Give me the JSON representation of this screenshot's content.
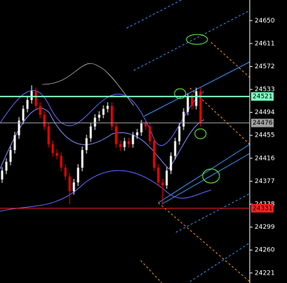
{
  "chart_data": {
    "type": "candlestick",
    "open": [
      24380,
      24395,
      24410,
      24430,
      24455,
      24480,
      24500,
      24515,
      24530,
      24505,
      24490,
      24470,
      24440,
      24425,
      24420,
      24400,
      24385,
      24360,
      24375,
      24400,
      24430,
      24450,
      24470,
      24485,
      24490,
      24500,
      24505,
      24470,
      24440,
      24435,
      24445,
      24440,
      24455,
      24460,
      24475,
      24470,
      24445,
      24400,
      24375,
      24370,
      24395,
      24420,
      24445,
      24470,
      24495,
      24520,
      24505,
      24530
    ],
    "high": [
      24401,
      24416,
      24436,
      24461,
      24486,
      24506,
      24521,
      24540,
      24536,
      24511,
      24496,
      24476,
      24446,
      24431,
      24426,
      24406,
      24391,
      24381,
      24406,
      24436,
      24456,
      24476,
      24491,
      24496,
      24506,
      24511,
      24511,
      24476,
      24446,
      24451,
      24451,
      24461,
      24466,
      24481,
      24481,
      24476,
      24451,
      24406,
      24381,
      24401,
      24426,
      24451,
      24476,
      24501,
      24526,
      24526,
      24536,
      24536
    ],
    "low": [
      24374,
      24389,
      24404,
      24424,
      24449,
      24474,
      24494,
      24509,
      24499,
      24484,
      24464,
      24434,
      24419,
      24414,
      24394,
      24379,
      24338,
      24354,
      24369,
      24394,
      24424,
      24444,
      24464,
      24479,
      24484,
      24494,
      24464,
      24434,
      24429,
      24429,
      24434,
      24434,
      24449,
      24454,
      24464,
      24439,
      24394,
      24369,
      24340,
      24364,
      24389,
      24414,
      24439,
      24464,
      24489,
      24499,
      24499,
      24470
    ],
    "close": [
      24395,
      24410,
      24430,
      24455,
      24480,
      24500,
      24515,
      24530,
      24505,
      24490,
      24470,
      24440,
      24425,
      24420,
      24400,
      24385,
      24360,
      24375,
      24400,
      24430,
      24450,
      24470,
      24485,
      24490,
      24500,
      24505,
      24470,
      24440,
      24435,
      24445,
      24440,
      24455,
      24460,
      24475,
      24470,
      24445,
      24400,
      24375,
      24370,
      24395,
      24420,
      24445,
      24470,
      24495,
      24520,
      24505,
      24530,
      24476
    ],
    "up_color": "#ffffff",
    "down_color": "#ff0000",
    "ylim": [
      24204,
      24685
    ],
    "yticks": [
      24221,
      24260,
      24299,
      24338,
      24377,
      24416,
      24455,
      24494,
      24533,
      24572,
      24611,
      24650
    ],
    "hlines": [
      {
        "value": 24521,
        "color": "#80ffc0"
      },
      {
        "value": 24476,
        "color": "#a0a0a0"
      },
      {
        "value": 24331,
        "color": "#ff2020"
      }
    ]
  }
}
